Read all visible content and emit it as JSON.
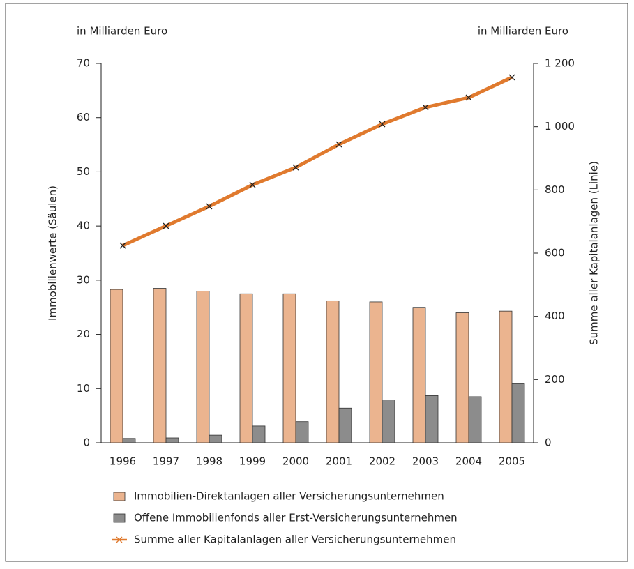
{
  "chart_data": {
    "type": "bar_line",
    "unit_left": "in Milliarden Euro",
    "unit_right": "in Milliarden Euro",
    "ylabel": "Immobilienwerte (Säulen)",
    "y2label": "Summe aller Kapitalanlagen (Linie)",
    "categories": [
      "1996",
      "1997",
      "1998",
      "1999",
      "2000",
      "2001",
      "2002",
      "2003",
      "2004",
      "2005"
    ],
    "series": [
      {
        "name": "Immobilien-Direktanlagen aller Versicherungsunternehmen",
        "type": "bar",
        "color": "#ebb48f",
        "values": [
          28.3,
          28.5,
          28.0,
          27.5,
          27.5,
          26.2,
          26.0,
          25.0,
          24.0,
          24.3
        ]
      },
      {
        "name": "Offene Immobilienfonds aller Erst-Versicherungsunternehmen",
        "type": "bar",
        "color": "#8c8c8c",
        "values": [
          0.8,
          0.9,
          1.4,
          3.1,
          3.9,
          6.4,
          7.9,
          8.7,
          8.5,
          11.0
        ]
      },
      {
        "name": "Summe aller Kapitalanlagen aller Versicherungsunternehmen",
        "type": "line",
        "axis": "y2",
        "color": "#e07a2e",
        "values": [
          624,
          686,
          748,
          816,
          871,
          944,
          1008,
          1061,
          1092,
          1156
        ]
      }
    ],
    "ylim": [
      0,
      70
    ],
    "yticks": [
      0,
      10,
      20,
      30,
      40,
      50,
      60,
      70
    ],
    "y2lim": [
      0,
      1200
    ],
    "y2ticks": [
      0,
      200,
      400,
      600,
      800,
      {
        "value": 1000,
        "label": "1 000"
      },
      {
        "value": 1200,
        "label": "1 200"
      }
    ]
  }
}
